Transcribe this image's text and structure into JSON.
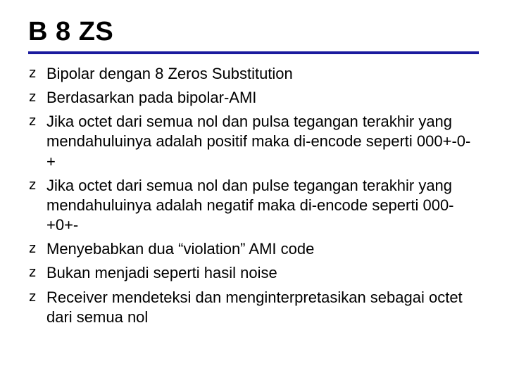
{
  "slide": {
    "title": "B 8 ZS",
    "title_rule_color": "#1a1a9e",
    "bullet_glyph": "z",
    "bullets": [
      "Bipolar dengan 8 Zeros Substitution",
      "Berdasarkan pada bipolar-AMI",
      "Jika octet dari semua nol dan pulsa tegangan terakhir yang mendahuluinya adalah positif maka di-encode seperti 000+-0-+",
      "Jika octet dari semua nol dan pulse tegangan terakhir yang mendahuluinya adalah negatif maka di-encode seperti 000-+0+-",
      "Menyebabkan dua “violation” AMI code",
      "Bukan menjadi seperti hasil noise",
      "Receiver mendeteksi dan menginterpretasikan sebagai octet dari semua nol"
    ]
  }
}
